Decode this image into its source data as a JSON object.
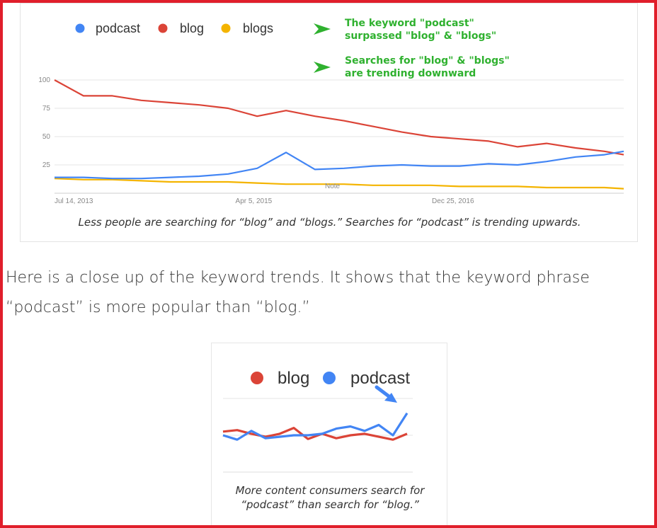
{
  "chart_data": [
    {
      "type": "line",
      "legend": [
        {
          "name": "podcast",
          "color": "#4285f4"
        },
        {
          "name": "blog",
          "color": "#db4437"
        },
        {
          "name": "blogs",
          "color": "#f4b400"
        }
      ],
      "annotations": [
        {
          "lines": [
            "The keyword \"podcast\"",
            "surpassed \"blog\" & \"blogs\""
          ]
        },
        {
          "lines": [
            "Searches for \"blog\" & \"blogs\"",
            "are trending downward"
          ]
        }
      ],
      "y_ticks": [
        100,
        75,
        50,
        25
      ],
      "ylim": [
        0,
        100
      ],
      "x_ticks": [
        "Jul 14, 2013",
        "Apr 5, 2015",
        "Dec 25, 2016"
      ],
      "note_label": "Note",
      "grid": true,
      "x_range": [
        "2013-07",
        "2018-06"
      ],
      "x": [
        "2013-07",
        "2013-10",
        "2014-01",
        "2014-04",
        "2014-07",
        "2014-10",
        "2015-01",
        "2015-04",
        "2015-07",
        "2015-10",
        "2016-01",
        "2016-04",
        "2016-07",
        "2016-10",
        "2017-01",
        "2017-04",
        "2017-07",
        "2017-10",
        "2018-01",
        "2018-04",
        "2018-06"
      ],
      "series": [
        {
          "name": "podcast",
          "color": "#4285f4",
          "values": [
            14,
            14,
            13,
            13,
            14,
            15,
            17,
            22,
            36,
            21,
            22,
            24,
            25,
            24,
            24,
            26,
            25,
            28,
            32,
            34,
            37
          ]
        },
        {
          "name": "blog",
          "color": "#db4437",
          "values": [
            100,
            86,
            86,
            82,
            80,
            78,
            75,
            68,
            73,
            68,
            64,
            59,
            54,
            50,
            48,
            46,
            41,
            44,
            40,
            37,
            34
          ]
        },
        {
          "name": "blogs",
          "color": "#f4b400",
          "values": [
            13,
            12,
            12,
            11,
            10,
            10,
            10,
            9,
            8,
            8,
            8,
            7,
            7,
            7,
            6,
            6,
            6,
            5,
            5,
            5,
            4
          ]
        }
      ],
      "caption": "Less people are searching for “blog” and “blogs.” Searches for “podcast” is trending upwards."
    },
    {
      "type": "line",
      "legend": [
        {
          "name": "blog",
          "color": "#db4437"
        },
        {
          "name": "podcast",
          "color": "#4285f4"
        }
      ],
      "grid": true,
      "ylim": [
        0,
        100
      ],
      "x": [
        1,
        2,
        3,
        4,
        5,
        6,
        7,
        8,
        9,
        10,
        11,
        12,
        13,
        14
      ],
      "series": [
        {
          "name": "blog",
          "color": "#db4437",
          "values": [
            55,
            57,
            52,
            48,
            52,
            60,
            45,
            52,
            46,
            50,
            52,
            48,
            44,
            52
          ]
        },
        {
          "name": "podcast",
          "color": "#4285f4",
          "values": [
            50,
            44,
            56,
            46,
            48,
            50,
            50,
            52,
            59,
            62,
            56,
            64,
            50,
            80
          ]
        }
      ],
      "caption": [
        "More content consumers search for",
        "“podcast” than search for “blog.”"
      ]
    }
  ],
  "paragraph": [
    "Here is a close up of the keyword trends. It shows that the keyword phrase",
    "“podcast” is more popular than “blog.”"
  ]
}
